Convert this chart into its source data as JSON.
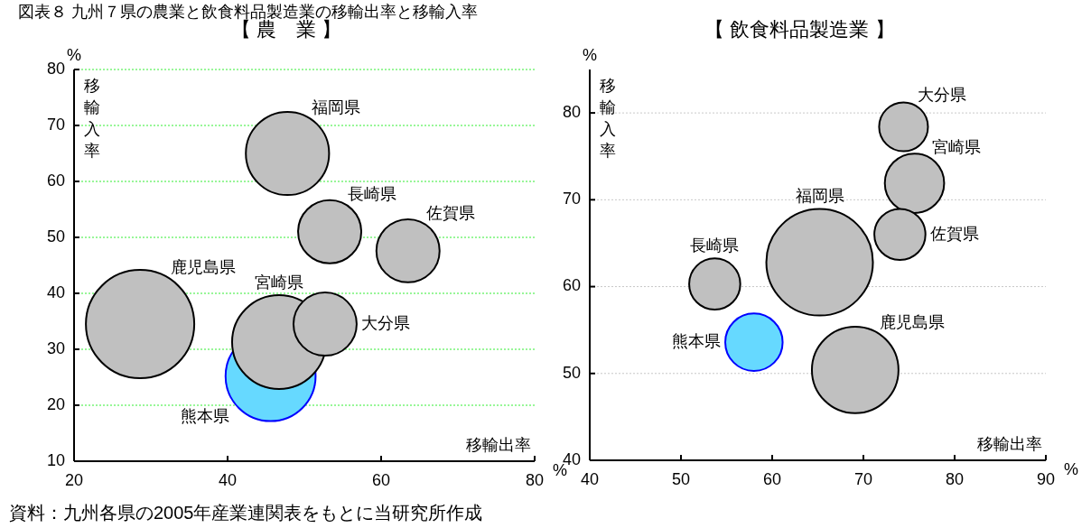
{
  "chart_data": [
    {
      "type": "bubble",
      "title": "図表８ 九州７県の農業と飲食料品製造業の移輸出率と移輸入率",
      "subtitle": "【 農　業 】",
      "xlabel": "移輸出率",
      "ylabel": "移輸入率",
      "xlim": [
        20,
        80
      ],
      "xticks": [
        20,
        40,
        60,
        80
      ],
      "ylim": [
        10,
        80
      ],
      "yticks": [
        10,
        20,
        30,
        40,
        50,
        60,
        70,
        80
      ],
      "grid": "y",
      "annotations": [
        "%",
        "%",
        "資料：九州各県の2005年産業連関表をもとに当研究所作成"
      ],
      "series": [
        {
          "name": "鹿児島県",
          "color": "#c0c0c0",
          "x": [
            28.6
          ],
          "values": [
            34.5
          ],
          "sizes": [
            1
          ]
        },
        {
          "name": "熊本県",
          "color": "#66d9ff",
          "x": [
            45.6
          ],
          "values": [
            25.2
          ],
          "sizes": [
            0.69
          ]
        },
        {
          "name": "宮崎県",
          "color": "#c0c0c0",
          "x": [
            46.7
          ],
          "values": [
            31.3
          ],
          "sizes": [
            0.75
          ]
        },
        {
          "name": "大分県",
          "color": "#c0c0c0",
          "x": [
            52.7
          ],
          "values": [
            34.5
          ],
          "sizes": [
            0.34
          ]
        },
        {
          "name": "福岡県",
          "color": "#c0c0c0",
          "x": [
            47.8
          ],
          "values": [
            65
          ],
          "sizes": [
            0.59
          ]
        },
        {
          "name": "長崎県",
          "color": "#c0c0c0",
          "x": [
            53.3
          ],
          "values": [
            51
          ],
          "sizes": [
            0.34
          ]
        },
        {
          "name": "佐賀県",
          "color": "#c0c0c0",
          "x": [
            63.5
          ],
          "values": [
            47.6
          ],
          "sizes": [
            0.34
          ]
        }
      ]
    },
    {
      "type": "bubble",
      "subtitle": "【 飲食料品製造業 】",
      "xlabel": "移輸出率",
      "ylabel": "移輸入率",
      "xlim": [
        40,
        90
      ],
      "xticks": [
        40,
        50,
        60,
        70,
        80,
        90
      ],
      "ylim": [
        40,
        85
      ],
      "yticks": [
        40,
        50,
        60,
        70,
        80
      ],
      "grid": "y",
      "annotations": [
        "%",
        "%"
      ],
      "series": [
        {
          "name": "福岡県",
          "color": "#c0c0c0",
          "x": [
            65.2
          ],
          "values": [
            62.8
          ],
          "sizes": [
            1
          ]
        },
        {
          "name": "鹿児島県",
          "color": "#c0c0c0",
          "x": [
            69.1
          ],
          "values": [
            50.4
          ],
          "sizes": [
            0.66
          ]
        },
        {
          "name": "宮崎県",
          "color": "#c0c0c0",
          "x": [
            75.6
          ],
          "values": [
            71.9
          ],
          "sizes": [
            0.31
          ]
        },
        {
          "name": "熊本県",
          "color": "#66d9ff",
          "x": [
            58.0
          ],
          "values": [
            53.6
          ],
          "sizes": [
            0.29
          ]
        },
        {
          "name": "佐賀県",
          "color": "#c0c0c0",
          "x": [
            74.0
          ],
          "values": [
            66.0
          ],
          "sizes": [
            0.23
          ]
        },
        {
          "name": "長崎県",
          "color": "#c0c0c0",
          "x": [
            53.7
          ],
          "values": [
            60.3
          ],
          "sizes": [
            0.23
          ]
        },
        {
          "name": "大分県",
          "color": "#c0c0c0",
          "x": [
            74.4
          ],
          "values": [
            78.4
          ],
          "sizes": [
            0.21
          ]
        }
      ]
    }
  ]
}
